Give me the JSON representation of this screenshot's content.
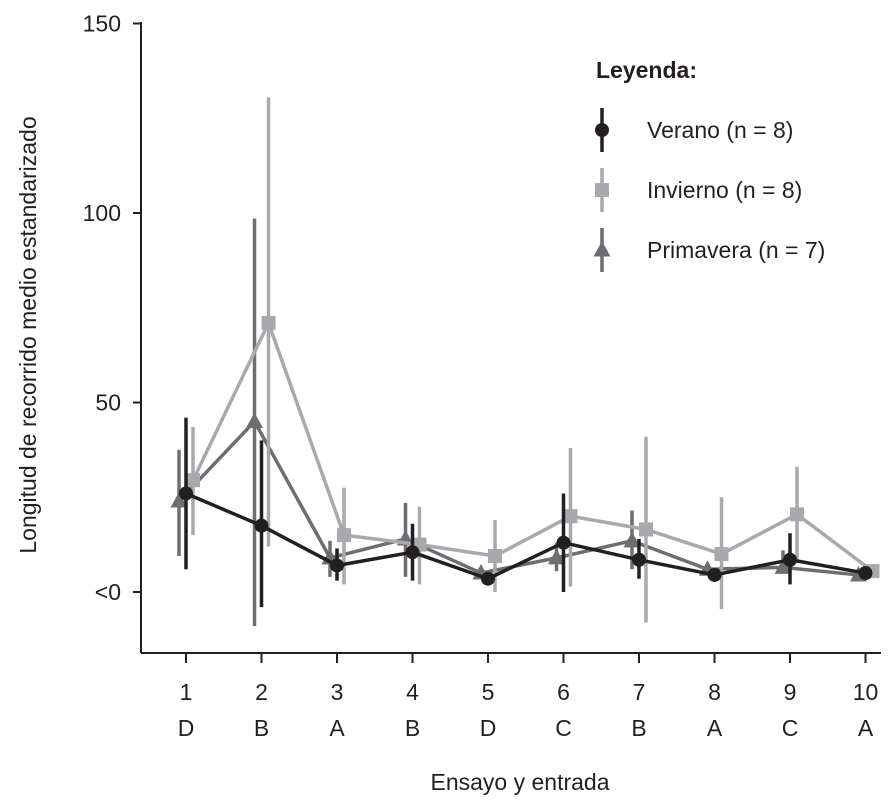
{
  "chart_data": {
    "type": "line",
    "title": "",
    "xlabel": "Ensayo y entrada",
    "ylabel": "Longitud de recorrido medio estandarizado",
    "ylim": [
      -16,
      150
    ],
    "yticks": [
      {
        "value": 0,
        "label": "<0"
      },
      {
        "value": 50,
        "label": "50"
      },
      {
        "value": 100,
        "label": "100"
      },
      {
        "value": 150,
        "label": "150"
      }
    ],
    "categories": [
      {
        "trial": "1",
        "entry": "D"
      },
      {
        "trial": "2",
        "entry": "B"
      },
      {
        "trial": "3",
        "entry": "A"
      },
      {
        "trial": "4",
        "entry": "B"
      },
      {
        "trial": "5",
        "entry": "D"
      },
      {
        "trial": "6",
        "entry": "C"
      },
      {
        "trial": "7",
        "entry": "B"
      },
      {
        "trial": "8",
        "entry": "A"
      },
      {
        "trial": "9",
        "entry": "C"
      },
      {
        "trial": "10",
        "entry": "A"
      }
    ],
    "legend": {
      "title": "Leyenda:",
      "position": "top-right"
    },
    "grid": false,
    "series": [
      {
        "name": "Verano (n = 8)",
        "marker": "circle",
        "color": "#231f20",
        "values": [
          26,
          17.5,
          7,
          10.5,
          3.5,
          13,
          8.5,
          4.5,
          8.5,
          5
        ],
        "err_low": [
          6,
          -4,
          3,
          3,
          3,
          0,
          3.5,
          4,
          2,
          4
        ],
        "err_high": [
          46,
          40,
          11.5,
          18,
          4,
          26,
          14,
          5,
          15.5,
          6
        ]
      },
      {
        "name": "Invierno (n = 8)",
        "marker": "square",
        "color": "#a7a9ac",
        "values": [
          29.5,
          71,
          15,
          12.5,
          9.5,
          20,
          16.5,
          10,
          20.5,
          5.5
        ],
        "err_low": [
          15,
          12,
          2,
          2,
          0,
          1.5,
          -8,
          -4.5,
          8,
          5
        ],
        "err_high": [
          43.5,
          130.5,
          27.5,
          22.5,
          19,
          38,
          41,
          25,
          33,
          6
        ]
      },
      {
        "name": "Primavera (n = 7)",
        "marker": "triangle",
        "color": "#6d6e71",
        "values": [
          24,
          45,
          9,
          14,
          5,
          9,
          13.5,
          6,
          6.5,
          4.5
        ],
        "err_low": [
          9.5,
          -9,
          4,
          4,
          4.5,
          5.5,
          6,
          5.5,
          5.5,
          4
        ],
        "err_high": [
          37.5,
          98.5,
          13.5,
          23.5,
          5.5,
          13,
          21.5,
          6.5,
          11,
          5
        ]
      }
    ]
  }
}
